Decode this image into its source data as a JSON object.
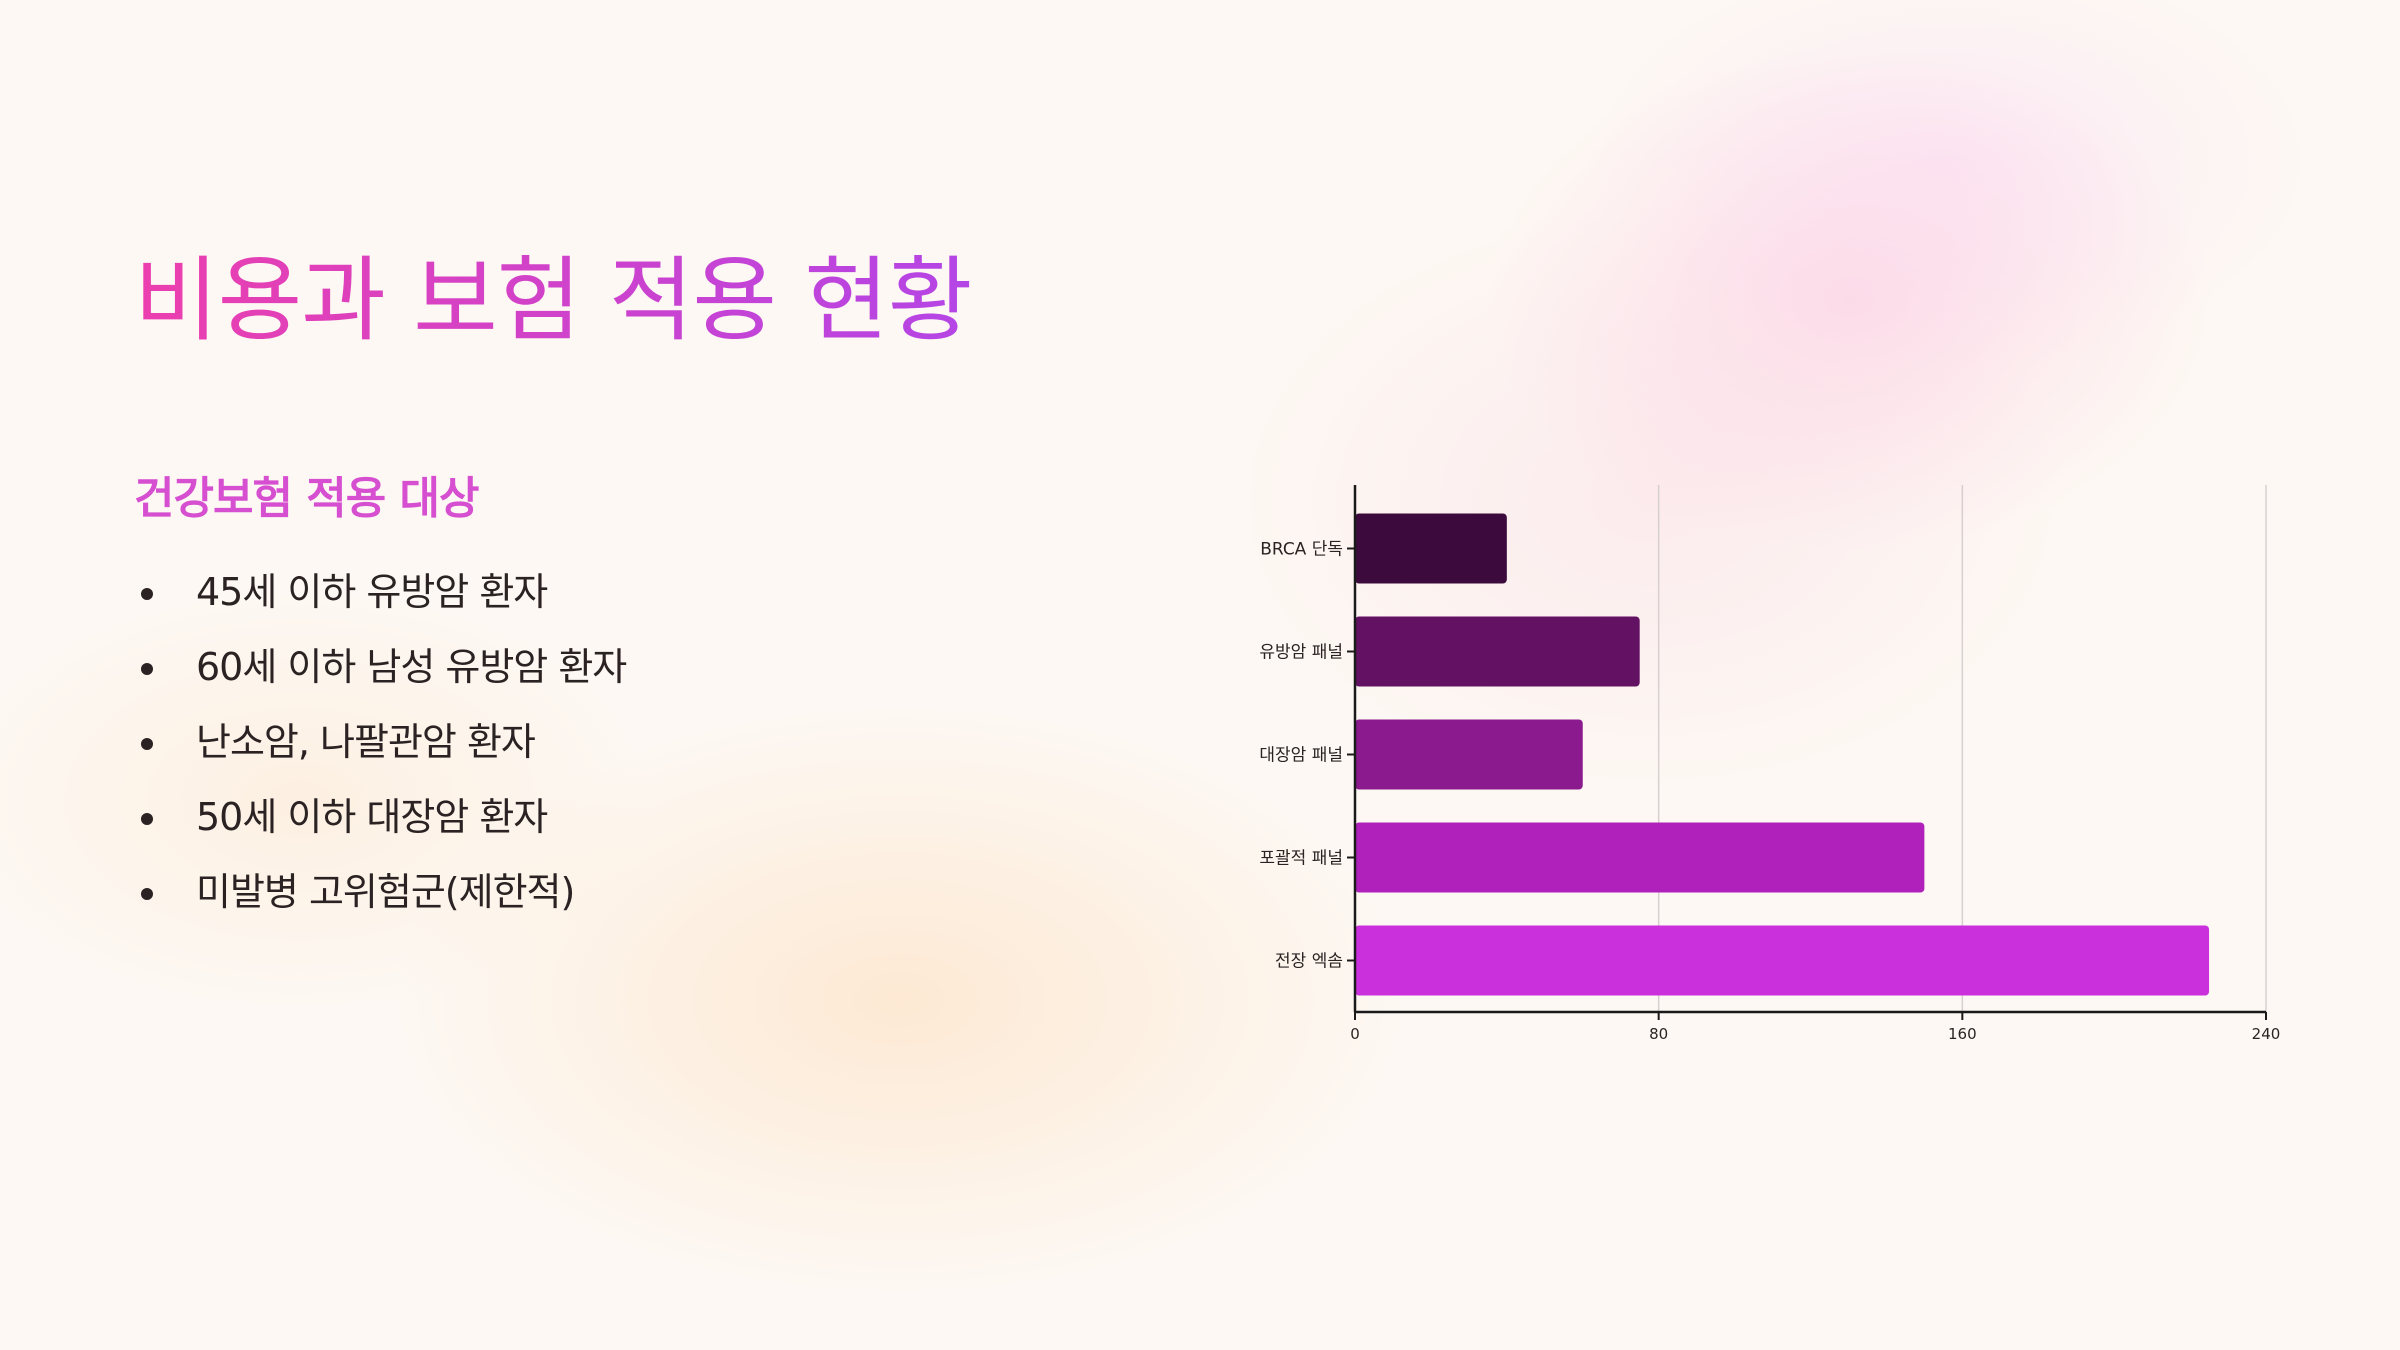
{
  "slide": {
    "title": "비용과 보험 적용 현황",
    "subtitle": "건강보험 적용 대상",
    "bullets": [
      "45세 이하 유방암 환자",
      "60세 이하 남성 유방암 환자",
      "난소암, 나팔관암 환자",
      "50세 이하 대장암 환자",
      "미발병 고위험군(제한적)"
    ]
  },
  "chart_data": {
    "type": "bar",
    "orientation": "horizontal",
    "categories": [
      "BRCA 단독",
      "유방암 패널",
      "대장암 패널",
      "포괄적 패널",
      "전장 엑솜"
    ],
    "values": [
      40,
      75,
      60,
      150,
      225
    ],
    "xlim": [
      0,
      240
    ],
    "xticks": [
      0,
      80,
      160,
      240
    ],
    "grid": "vertical",
    "colors": [
      "#3d0a3d",
      "#631163",
      "#8b1a8e",
      "#b021bb",
      "#ca30dc"
    ]
  }
}
